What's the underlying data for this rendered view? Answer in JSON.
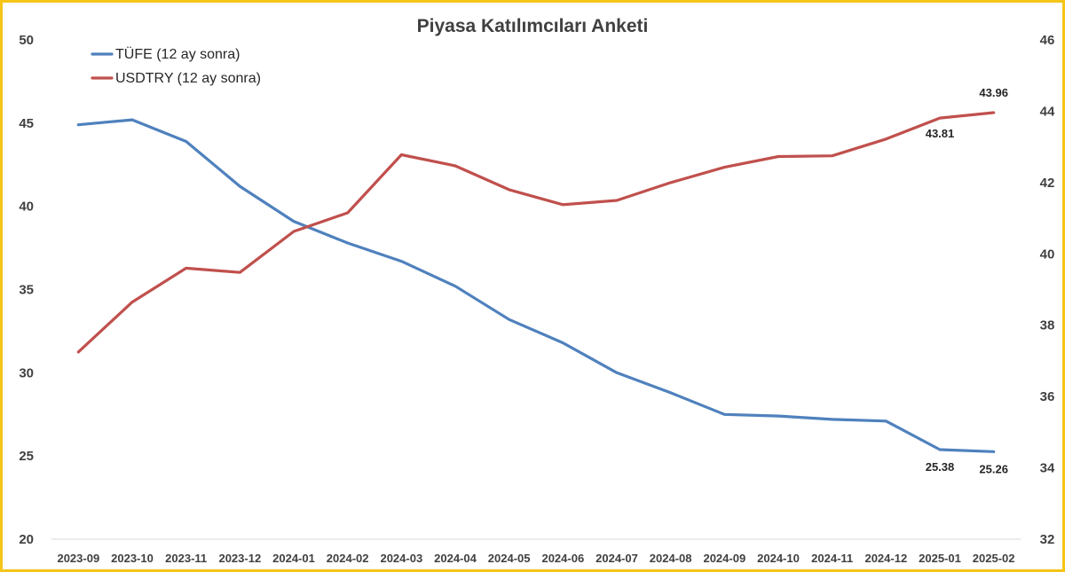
{
  "chart_data": {
    "type": "line",
    "title": "Piyasa Katılımcıları Anketi",
    "categories": [
      "2023-09",
      "2023-10",
      "2023-11",
      "2023-12",
      "2024-01",
      "2024-02",
      "2024-03",
      "2024-04",
      "2024-05",
      "2024-06",
      "2024-07",
      "2024-08",
      "2024-09",
      "2024-10",
      "2024-11",
      "2024-12",
      "2025-01",
      "2025-02"
    ],
    "y_left": {
      "min": 20,
      "max": 50,
      "ticks": [
        "20",
        "25",
        "30",
        "35",
        "40",
        "45",
        "50"
      ]
    },
    "y_right": {
      "min": 32,
      "max": 46,
      "ticks": [
        "32",
        "34",
        "36",
        "38",
        "40",
        "42",
        "44",
        "46"
      ]
    },
    "grid": false,
    "legend_position": "top-left",
    "series": [
      {
        "name": "TÜFE (12 ay sonra)",
        "axis": "left",
        "color": "#4f81bd",
        "values": [
          44.9,
          45.2,
          43.9,
          41.2,
          39.1,
          37.8,
          36.7,
          35.2,
          33.2,
          31.8,
          30.0,
          28.8,
          27.5,
          27.4,
          27.2,
          27.1,
          25.38,
          25.26
        ],
        "data_labels": [
          {
            "index": 16,
            "text": "25.38"
          },
          {
            "index": 17,
            "text": "25.26"
          }
        ]
      },
      {
        "name": "USDTRY (12 ay sonra)",
        "axis": "right",
        "color": "#c0504d",
        "values": [
          37.25,
          38.65,
          39.6,
          39.48,
          40.63,
          41.15,
          42.78,
          42.47,
          41.8,
          41.38,
          41.5,
          42.0,
          42.43,
          42.73,
          42.75,
          43.22,
          43.81,
          43.96
        ],
        "data_labels": [
          {
            "index": 16,
            "text": "43.81"
          },
          {
            "index": 17,
            "text": "43.96"
          }
        ]
      }
    ]
  }
}
